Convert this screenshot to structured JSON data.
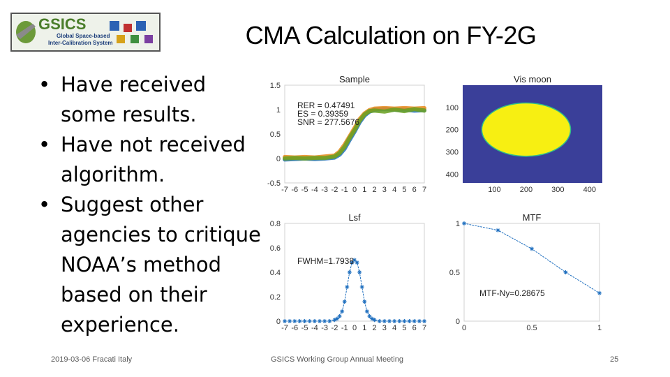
{
  "logo": {
    "name": "GSICS",
    "line1": "Global Space-based",
    "line2": "Inter-Calibration System"
  },
  "title": "CMA Calculation on FY-2G",
  "bullets": [
    {
      "line1": "Have received",
      "line2": "some results."
    },
    {
      "line1": "Have not received",
      "line2": "algorithm."
    },
    {
      "line1": "Suggest other",
      "line2": "agencies to critique",
      "line3": "NOAA’s method",
      "line4": "based on their",
      "line5": "experience."
    }
  ],
  "bullet_glyph": "•",
  "footer": {
    "date": "2019-03-06 Fracati Italy",
    "meeting": "GSICS Working Group Annual Meeting",
    "page": "25"
  },
  "chart_data": [
    {
      "type": "line",
      "title": "Sample",
      "xlim": [
        -7,
        7
      ],
      "ylim": [
        -0.5,
        1.5
      ],
      "xticks": [
        "-7",
        "-6",
        "-5",
        "-4",
        "-3",
        "-2",
        "-1",
        "0",
        "1",
        "2",
        "3",
        "4",
        "5",
        "6",
        "7"
      ],
      "yticks": [
        "-0.5",
        "0",
        "0.5",
        "1",
        "1.5"
      ],
      "annotations": [
        "RER = 0.47491",
        "ES = 0.39359",
        "SNR = 277.5676"
      ],
      "series": [
        {
          "color": "#1f6fbf",
          "x": [
            -7,
            -6,
            -5,
            -4,
            -3,
            -2,
            -1.5,
            -1,
            -0.5,
            0,
            0.5,
            1,
            1.5,
            2,
            3,
            4,
            5,
            6,
            7
          ],
          "y": [
            -0.02,
            -0.01,
            0.0,
            -0.01,
            0.0,
            0.02,
            0.08,
            0.2,
            0.38,
            0.55,
            0.74,
            0.88,
            0.96,
            1.0,
            1.01,
            1.0,
            1.0,
            0.98,
            0.99
          ]
        },
        {
          "color": "#e8891b",
          "x": [
            -7,
            -6,
            -5,
            -4,
            -3,
            -2,
            -1.5,
            -1,
            -0.5,
            0,
            0.5,
            1,
            1.5,
            2,
            3,
            4,
            5,
            6,
            7
          ],
          "y": [
            0.03,
            0.02,
            0.03,
            0.02,
            0.04,
            0.06,
            0.14,
            0.28,
            0.45,
            0.62,
            0.8,
            0.92,
            0.99,
            1.02,
            1.03,
            1.02,
            1.03,
            1.02,
            1.03
          ]
        },
        {
          "color": "#6aa121",
          "x": [
            -7,
            -6,
            -5,
            -4,
            -3,
            -2,
            -1.5,
            -1,
            -0.5,
            0,
            0.5,
            1,
            1.5,
            2,
            3,
            4,
            5,
            6,
            7
          ],
          "y": [
            0.0,
            0.01,
            0.0,
            0.01,
            0.01,
            0.04,
            0.11,
            0.24,
            0.42,
            0.58,
            0.77,
            0.9,
            0.97,
            0.98,
            0.96,
            1.0,
            0.97,
            1.01,
            0.98
          ]
        }
      ]
    },
    {
      "type": "heatmap",
      "title": "Vis moon",
      "xticks": [
        "100",
        "200",
        "300",
        "400"
      ],
      "yticks": [
        "100",
        "200",
        "300",
        "400"
      ],
      "xlim": [
        0,
        440
      ],
      "ylim": [
        0,
        440
      ],
      "background_color": "#3a3f99",
      "disk": {
        "cx": 200,
        "cy": 200,
        "rx": 140,
        "ry": 120,
        "color": "#f7ef12"
      }
    },
    {
      "type": "line",
      "title": "Lsf",
      "xlim": [
        -7,
        7
      ],
      "ylim": [
        0,
        0.8
      ],
      "xticks": [
        "-7",
        "-6",
        "-5",
        "-4",
        "-3",
        "-2",
        "-1",
        "0",
        "1",
        "2",
        "3",
        "4",
        "5",
        "6",
        "7"
      ],
      "yticks": [
        "0",
        "0.2",
        "0.4",
        "0.6",
        "0.8"
      ],
      "annotations": [
        "FWHM=1.7938"
      ],
      "series": [
        {
          "color": "#1f6fbf",
          "x": [
            -7,
            -6.5,
            -6,
            -5.5,
            -5,
            -4.5,
            -4,
            -3.5,
            -3,
            -2.5,
            -2,
            -1.75,
            -1.5,
            -1.25,
            -1,
            -0.75,
            -0.5,
            -0.25,
            0,
            0.25,
            0.5,
            0.75,
            1,
            1.25,
            1.5,
            1.75,
            2,
            2.5,
            3,
            3.5,
            4,
            4.5,
            5,
            5.5,
            6,
            6.5,
            7
          ],
          "y": [
            0,
            0,
            0,
            0,
            0,
            0,
            0,
            0,
            0,
            0,
            0.01,
            0.02,
            0.04,
            0.08,
            0.16,
            0.28,
            0.4,
            0.48,
            0.5,
            0.48,
            0.4,
            0.28,
            0.16,
            0.08,
            0.04,
            0.02,
            0.01,
            0,
            0,
            0,
            0,
            0,
            0,
            0,
            0,
            0,
            0
          ]
        }
      ]
    },
    {
      "type": "line",
      "title": "MTF",
      "xlim": [
        0,
        1
      ],
      "ylim": [
        0,
        1
      ],
      "xticks": [
        "0",
        "0.5",
        "1"
      ],
      "yticks": [
        "0",
        "0.5",
        "1"
      ],
      "annotations": [
        "MTF-Ny=0.28675"
      ],
      "series": [
        {
          "color": "#1f6fbf",
          "x": [
            0,
            0.25,
            0.5,
            0.75,
            1.0
          ],
          "y": [
            1.0,
            0.93,
            0.74,
            0.5,
            0.287
          ]
        }
      ]
    }
  ]
}
